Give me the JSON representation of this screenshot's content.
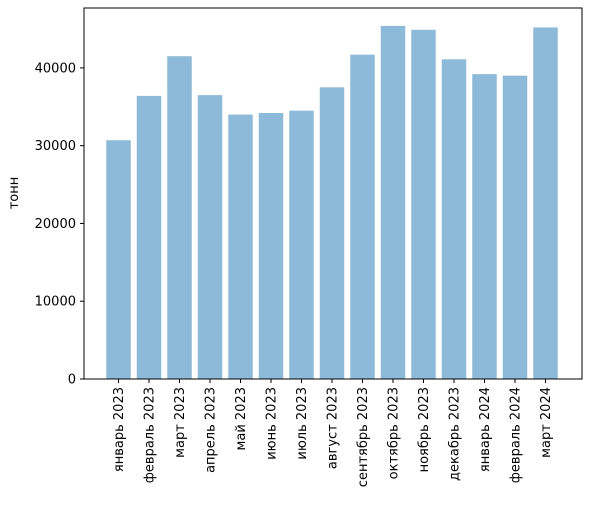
{
  "chart_data": {
    "type": "bar",
    "title": "",
    "xlabel": "",
    "ylabel": "тонн",
    "categories": [
      "январь 2023",
      "февраль 2023",
      "март 2023",
      "апрель 2023",
      "май 2023",
      "июнь 2023",
      "июль 2023",
      "август 2023",
      "сентябрь 2023",
      "октябрь 2023",
      "ноябрь 2023",
      "декабрь 2023",
      "январь 2024",
      "февраль 2024",
      "март 2024"
    ],
    "values": [
      30700,
      36400,
      41500,
      36500,
      34000,
      34200,
      34500,
      37500,
      41700,
      45400,
      44900,
      41100,
      39200,
      39000,
      45200
    ],
    "ylim": [
      0,
      47700
    ],
    "yticks": [
      0,
      10000,
      20000,
      30000,
      40000
    ],
    "bar_color": "#8ebad9",
    "grid": false,
    "legend": "none"
  }
}
